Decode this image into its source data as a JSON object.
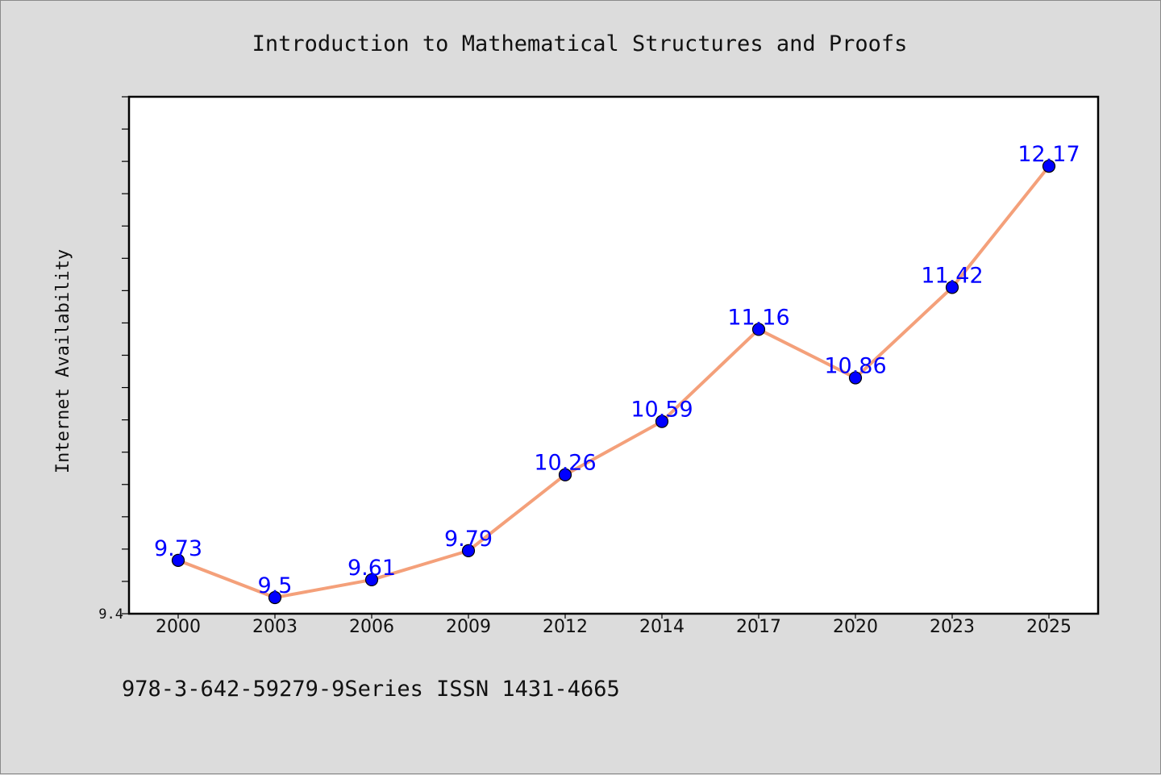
{
  "chart_data": {
    "type": "line",
    "title": "Introduction to Mathematical Structures and Proofs",
    "ylabel": "Internet Availability",
    "xlabel": "",
    "categories": [
      "2000",
      "2003",
      "2006",
      "2009",
      "2012",
      "2014",
      "2017",
      "2020",
      "2023",
      "2025"
    ],
    "series": [
      {
        "values": [
          9.73,
          9.5,
          9.61,
          9.79,
          10.26,
          10.59,
          11.16,
          10.86,
          11.42,
          12.17
        ],
        "labels": [
          "9.73",
          "9.5",
          "9.61",
          "9.79",
          "10.26",
          "10.59",
          "11.16",
          "10.86",
          "11.42",
          "12.17"
        ],
        "line_color": "#f4a07a",
        "marker_color": "#0000ff"
      }
    ],
    "y_min_label": "9.4",
    "ylim": [
      9.4,
      12.6
    ],
    "grid": false,
    "legend": "none",
    "footer": "978-3-642-59279-9Series ISSN 1431-4665"
  }
}
